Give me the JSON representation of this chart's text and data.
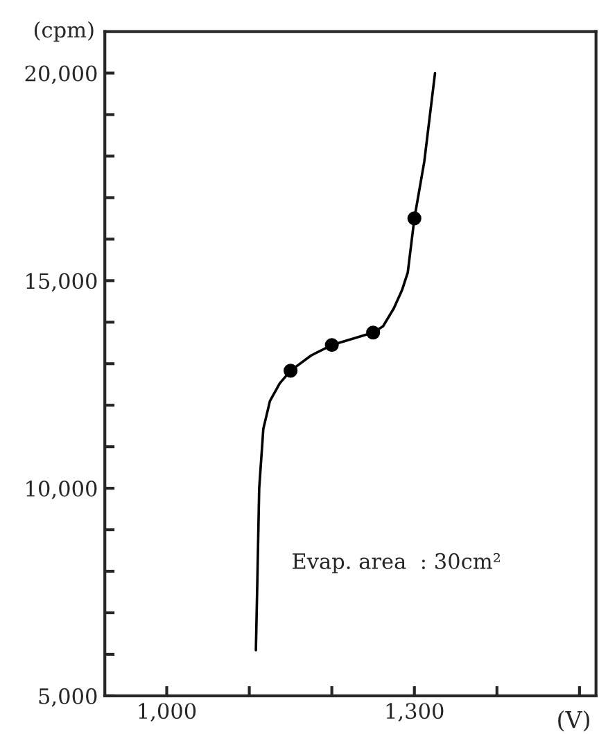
{
  "chart_data": {
    "type": "line",
    "xlabel": "(V)",
    "ylabel": "(cpm)",
    "series": [
      {
        "color": "#000000",
        "marker": "none",
        "x": [
          1108,
          1110,
          1112,
          1117,
          1125,
          1137,
          1150,
          1175,
          1200,
          1225,
          1250,
          1262,
          1275,
          1285,
          1292,
          1300,
          1312,
          1325
        ],
        "values": [
          6100,
          8000,
          10000,
          11430,
          12100,
          12530,
          12830,
          13200,
          13450,
          13600,
          13750,
          13900,
          14330,
          14770,
          15200,
          16500,
          17870,
          20000
        ]
      },
      {
        "type": "scatter",
        "color": "#000000",
        "marker": "circle",
        "x": [
          1150,
          1200,
          1250,
          1300
        ],
        "values": [
          12830,
          13450,
          13750,
          16500
        ]
      }
    ],
    "xlim": [
      925,
      1520
    ],
    "xticks": [
      {
        "value": 1000,
        "label": "1,000"
      },
      {
        "value": 1100,
        "label": null
      },
      {
        "value": 1200,
        "label": null
      },
      {
        "value": 1300,
        "label": "1,300"
      },
      {
        "value": 1400,
        "label": null
      },
      {
        "value": 1500,
        "label": null
      }
    ],
    "ylim": [
      5000,
      21000
    ],
    "yticks": [
      {
        "value": 5000,
        "label": "5,000"
      },
      {
        "value": 6000,
        "label": null
      },
      {
        "value": 7000,
        "label": null
      },
      {
        "value": 8000,
        "label": null
      },
      {
        "value": 9000,
        "label": null
      },
      {
        "value": 10000,
        "label": "10,000"
      },
      {
        "value": 11000,
        "label": null
      },
      {
        "value": 12000,
        "label": null
      },
      {
        "value": 13000,
        "label": null
      },
      {
        "value": 14000,
        "label": null
      },
      {
        "value": 15000,
        "label": "15,000"
      },
      {
        "value": 16000,
        "label": null
      },
      {
        "value": 17000,
        "label": null
      },
      {
        "value": 18000,
        "label": null
      },
      {
        "value": 19000,
        "label": null
      },
      {
        "value": 20000,
        "label": "20,000"
      }
    ],
    "grid": false,
    "legend": false,
    "annotations": [
      "Evap. area  : 30cm²"
    ]
  }
}
